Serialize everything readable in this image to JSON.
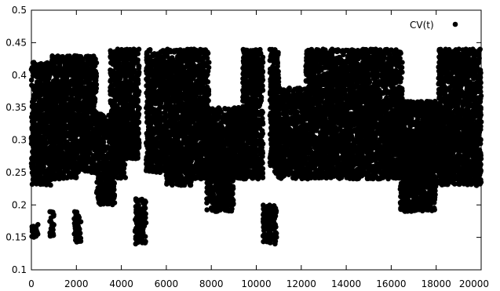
{
  "chart_data": {
    "type": "scatter",
    "title": "",
    "xlabel": "",
    "ylabel": "",
    "xlim": [
      0,
      20000
    ],
    "ylim": [
      0.1,
      0.5
    ],
    "x_ticks": [
      "0",
      "2000",
      "4000",
      "6000",
      "8000",
      "10000",
      "12000",
      "14000",
      "16000",
      "18000",
      "20000"
    ],
    "y_ticks": [
      "0.1",
      "0.15",
      "0.2",
      "0.25",
      "0.3",
      "0.35",
      "0.4",
      "0.45",
      "0.5"
    ],
    "legend": {
      "label": "CV(t)",
      "position": "top-right"
    },
    "grid": false,
    "series": [
      {
        "name": "CV(t)",
        "color": "#000000",
        "marker": "filled-circle",
        "segments": [
          {
            "x_range": [
              0,
              300
            ],
            "y_range": [
              0.15,
              0.17
            ]
          },
          {
            "x_range": [
              0,
              900
            ],
            "y_range": [
              0.23,
              0.42
            ]
          },
          {
            "x_range": [
              800,
              1000
            ],
            "y_range": [
              0.15,
              0.19
            ]
          },
          {
            "x_range": [
              900,
              2000
            ],
            "y_range": [
              0.24,
              0.43
            ]
          },
          {
            "x_range": [
              1900,
              2200
            ],
            "y_range": [
              0.14,
              0.19
            ]
          },
          {
            "x_range": [
              2000,
              2900
            ],
            "y_range": [
              0.25,
              0.43
            ]
          },
          {
            "x_range": [
              2900,
              3700
            ],
            "y_range": [
              0.2,
              0.34
            ]
          },
          {
            "x_range": [
              3500,
              4200
            ],
            "y_range": [
              0.24,
              0.44
            ]
          },
          {
            "x_range": [
              4100,
              4800
            ],
            "y_range": [
              0.27,
              0.44
            ]
          },
          {
            "x_range": [
              4600,
              5100
            ],
            "y_range": [
              0.14,
              0.21
            ]
          },
          {
            "x_range": [
              5100,
              6000
            ],
            "y_range": [
              0.25,
              0.44
            ]
          },
          {
            "x_range": [
              6000,
              7100
            ],
            "y_range": [
              0.23,
              0.44
            ]
          },
          {
            "x_range": [
              7000,
              7900
            ],
            "y_range": [
              0.24,
              0.44
            ]
          },
          {
            "x_range": [
              7800,
              9000
            ],
            "y_range": [
              0.19,
              0.28
            ]
          },
          {
            "x_range": [
              7800,
              9500
            ],
            "y_range": [
              0.24,
              0.35
            ]
          },
          {
            "x_range": [
              9400,
              10300
            ],
            "y_range": [
              0.24,
              0.44
            ]
          },
          {
            "x_range": [
              10300,
              10900
            ],
            "y_range": [
              0.14,
              0.2
            ]
          },
          {
            "x_range": [
              10600,
              11000
            ],
            "y_range": [
              0.26,
              0.44
            ]
          },
          {
            "x_range": [
              10800,
              12200
            ],
            "y_range": [
              0.24,
              0.38
            ]
          },
          {
            "x_range": [
              12200,
              13400
            ],
            "y_range": [
              0.24,
              0.44
            ]
          },
          {
            "x_range": [
              13300,
              15000
            ],
            "y_range": [
              0.24,
              0.44
            ]
          },
          {
            "x_range": [
              14900,
              16500
            ],
            "y_range": [
              0.24,
              0.44
            ]
          },
          {
            "x_range": [
              16400,
              18000
            ],
            "y_range": [
              0.19,
              0.3
            ]
          },
          {
            "x_range": [
              16500,
              18200
            ],
            "y_range": [
              0.25,
              0.36
            ]
          },
          {
            "x_range": [
              18100,
              20000
            ],
            "y_range": [
              0.23,
              0.44
            ]
          }
        ]
      }
    ]
  }
}
